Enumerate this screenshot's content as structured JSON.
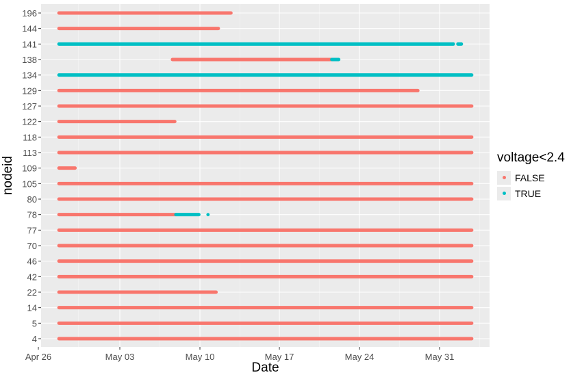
{
  "chart_data": {
    "type": "scatter",
    "xlabel": "Date",
    "ylabel": "nodeid",
    "x_ticks": [
      "Apr 26",
      "May 03",
      "May 10",
      "May 17",
      "May 24",
      "May 31"
    ],
    "x_range": [
      "2020-04-26",
      "2020-06-05"
    ],
    "categories": [
      "4",
      "5",
      "14",
      "22",
      "42",
      "46",
      "70",
      "77",
      "78",
      "80",
      "105",
      "109",
      "113",
      "118",
      "122",
      "127",
      "129",
      "134",
      "138",
      "141",
      "144",
      "196"
    ],
    "colors": {
      "FALSE": "#f8766d",
      "TRUE": "#00bfc4"
    },
    "legend": {
      "title": "voltage<2.4",
      "position": "right",
      "entries": [
        "FALSE",
        "TRUE"
      ]
    },
    "grid": true,
    "series": [
      {
        "node": "196",
        "segments": [
          {
            "start": "2020-04-27.8",
            "end": "2020-05-11.6",
            "value": "FALSE"
          },
          {
            "start": "2020-05-11.6",
            "end": "2020-05-12.8",
            "value": "FALSE"
          }
        ]
      },
      {
        "node": "144",
        "segments": [
          {
            "start": "2020-04-27.8",
            "end": "2020-05-11.7",
            "value": "FALSE"
          }
        ]
      },
      {
        "node": "141",
        "segments": [
          {
            "start": "2020-04-27.8",
            "end": "2020-06-01.2",
            "value": "TRUE"
          },
          {
            "start": "2020-06-01.6",
            "end": "2020-06-01.9",
            "value": "TRUE"
          }
        ]
      },
      {
        "node": "138",
        "segments": [
          {
            "start": "2020-05-07.7",
            "end": "2020-05-21.6",
            "value": "FALSE"
          },
          {
            "start": "2020-05-21.6",
            "end": "2020-05-22.2",
            "value": "TRUE"
          }
        ]
      },
      {
        "node": "134",
        "segments": [
          {
            "start": "2020-04-27.8",
            "end": "2020-06-02.8",
            "value": "TRUE"
          }
        ]
      },
      {
        "node": "129",
        "segments": [
          {
            "start": "2020-04-27.8",
            "end": "2020-05-29.1",
            "value": "FALSE"
          }
        ]
      },
      {
        "node": "127",
        "segments": [
          {
            "start": "2020-04-27.8",
            "end": "2020-06-02.8",
            "value": "FALSE"
          }
        ]
      },
      {
        "node": "122",
        "segments": [
          {
            "start": "2020-04-27.8",
            "end": "2020-05-07.9",
            "value": "FALSE"
          }
        ]
      },
      {
        "node": "118",
        "segments": [
          {
            "start": "2020-04-27.8",
            "end": "2020-06-02.8",
            "value": "FALSE"
          }
        ]
      },
      {
        "node": "113",
        "segments": [
          {
            "start": "2020-04-27.8",
            "end": "2020-06-02.8",
            "value": "FALSE"
          }
        ]
      },
      {
        "node": "109",
        "segments": [
          {
            "start": "2020-04-27.8",
            "end": "2020-04-29.2",
            "value": "FALSE"
          }
        ]
      },
      {
        "node": "105",
        "segments": [
          {
            "start": "2020-04-27.8",
            "end": "2020-06-02.8",
            "value": "FALSE"
          }
        ]
      },
      {
        "node": "80",
        "segments": [
          {
            "start": "2020-04-27.8",
            "end": "2020-06-02.8",
            "value": "FALSE"
          }
        ]
      },
      {
        "node": "78",
        "segments": [
          {
            "start": "2020-04-27.8",
            "end": "2020-05-08.0",
            "value": "FALSE"
          },
          {
            "start": "2020-05-08.0",
            "end": "2020-05-10.0",
            "value": "TRUE"
          },
          {
            "start": "2020-05-10.8",
            "end": "2020-05-10.8",
            "value": "TRUE"
          }
        ]
      },
      {
        "node": "77",
        "segments": [
          {
            "start": "2020-04-27.8",
            "end": "2020-06-02.8",
            "value": "FALSE"
          }
        ]
      },
      {
        "node": "70",
        "segments": [
          {
            "start": "2020-04-27.8",
            "end": "2020-06-02.8",
            "value": "FALSE"
          }
        ]
      },
      {
        "node": "46",
        "segments": [
          {
            "start": "2020-04-27.8",
            "end": "2020-06-02.8",
            "value": "FALSE"
          }
        ]
      },
      {
        "node": "42",
        "segments": [
          {
            "start": "2020-04-27.8",
            "end": "2020-06-02.8",
            "value": "FALSE"
          }
        ]
      },
      {
        "node": "22",
        "segments": [
          {
            "start": "2020-04-27.8",
            "end": "2020-05-11.5",
            "value": "FALSE"
          }
        ]
      },
      {
        "node": "14",
        "segments": [
          {
            "start": "2020-04-27.8",
            "end": "2020-06-02.8",
            "value": "FALSE"
          }
        ]
      },
      {
        "node": "5",
        "segments": [
          {
            "start": "2020-04-27.8",
            "end": "2020-06-02.8",
            "value": "FALSE"
          }
        ]
      },
      {
        "node": "4",
        "segments": [
          {
            "start": "2020-04-27.8",
            "end": "2020-06-02.8",
            "value": "FALSE"
          }
        ]
      }
    ]
  }
}
